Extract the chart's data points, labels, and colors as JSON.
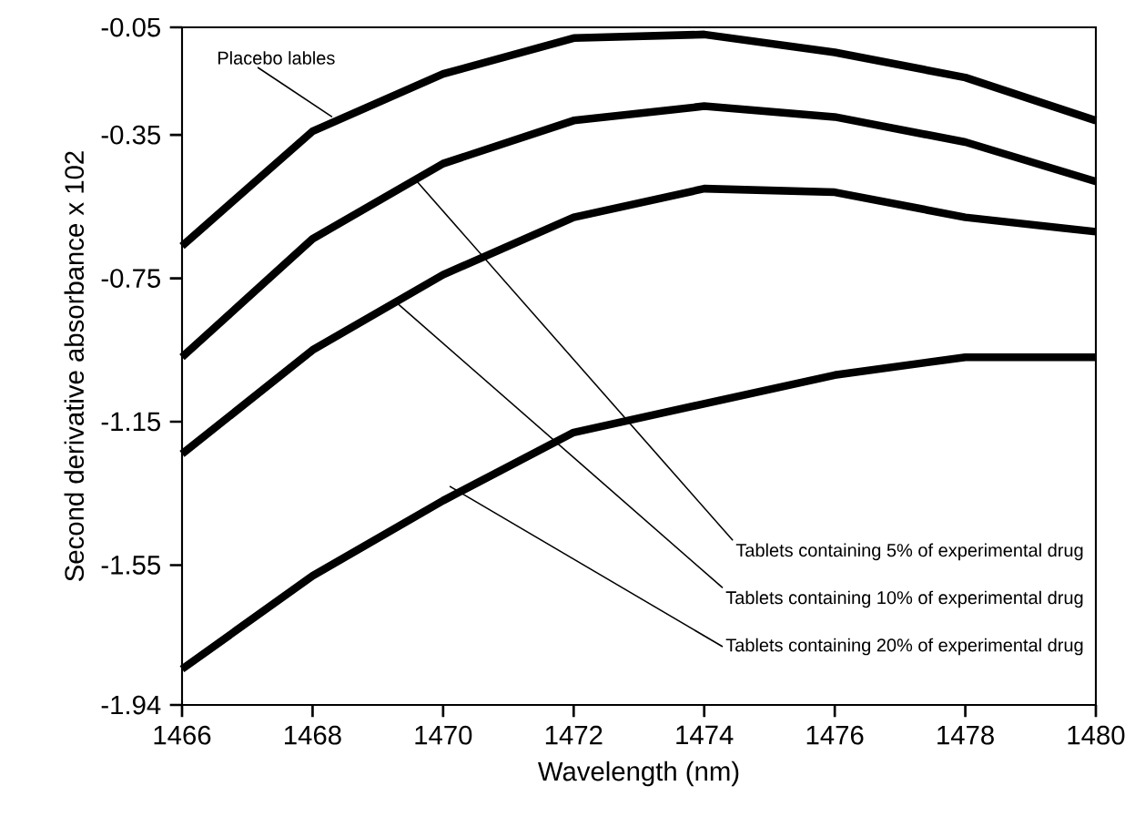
{
  "chart_data": {
    "type": "line",
    "xlabel": "Wavelength (nm)",
    "ylabel": "Second derivative absorbance x 102",
    "x": [
      1466,
      1468,
      1470,
      1472,
      1474,
      1476,
      1478,
      1480
    ],
    "series": [
      {
        "color": "#000000",
        "values": [
          -0.66,
          -0.34,
          -0.18,
          -0.08,
          -0.07,
          -0.12,
          -0.19,
          -0.31
        ]
      },
      {
        "color": "#000000",
        "values": [
          -0.97,
          -0.64,
          -0.43,
          -0.31,
          -0.27,
          -0.3,
          -0.37,
          -0.48
        ]
      },
      {
        "color": "#000000",
        "values": [
          -1.24,
          -0.95,
          -0.74,
          -0.58,
          -0.5,
          -0.51,
          -0.58,
          -0.62
        ]
      },
      {
        "color": "#000000",
        "values": [
          -1.84,
          -1.58,
          -1.37,
          -1.18,
          -1.1,
          -1.02,
          -0.97,
          -0.97
        ]
      }
    ],
    "xlim": [
      1466,
      1480
    ],
    "ylim": [
      -1.94,
      -0.05
    ],
    "xticks": [
      1466,
      1468,
      1470,
      1472,
      1474,
      1476,
      1478,
      1480
    ],
    "yticks": [
      -1.94,
      -1.55,
      -1.15,
      -0.75,
      -0.35,
      -0.05
    ],
    "annotations": [
      {
        "text": "Placebo lables",
        "x": 1468.3,
        "y": -0.3
      },
      {
        "text": "Tablets containing 5% of experimental drug",
        "x": 1469.6,
        "y": -0.48
      },
      {
        "text": "Tablets containing 10% of experimental drug",
        "x": 1469.3,
        "y": -0.82
      },
      {
        "text": "Tablets containing 20% of experimental drug",
        "x": 1470.1,
        "y": -1.33
      }
    ]
  }
}
